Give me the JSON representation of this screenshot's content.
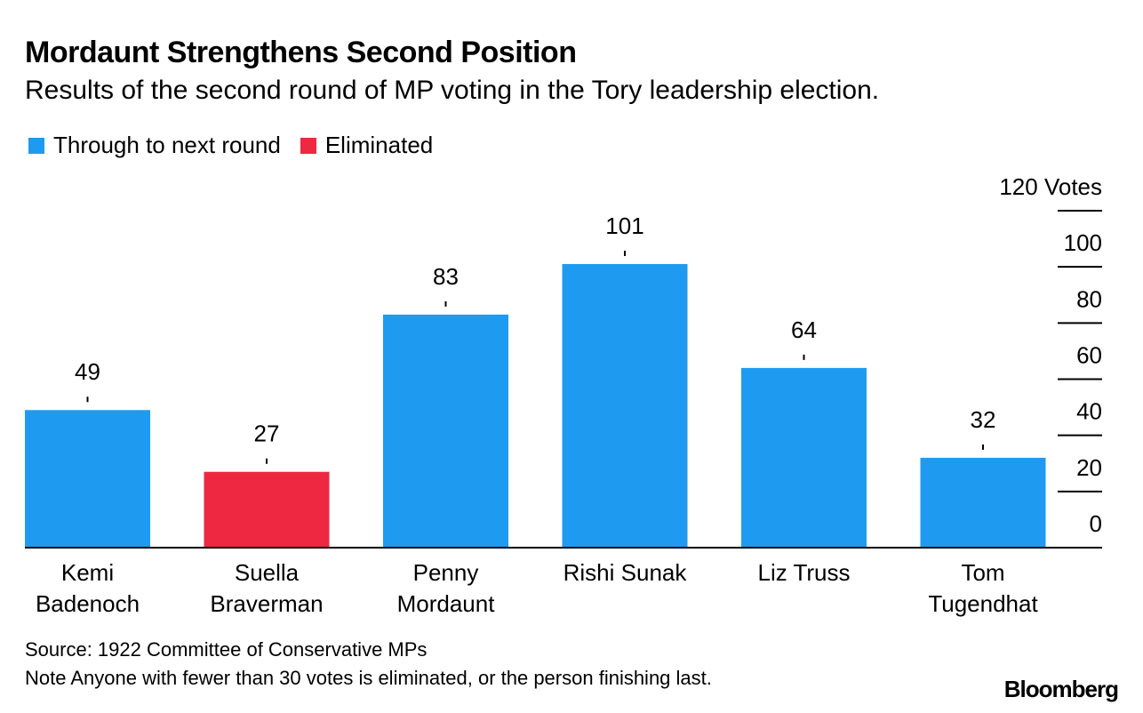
{
  "chart_data": {
    "type": "bar",
    "title": "Mordaunt Strengthens Second Position",
    "subtitle": "Results of the second round of MP voting in the Tory leadership election.",
    "categories": [
      [
        "Kemi",
        "Badenoch"
      ],
      [
        "Suella",
        "Braverman"
      ],
      [
        "Penny",
        "Mordaunt"
      ],
      [
        "Rishi Sunak"
      ],
      [
        "Liz Truss"
      ],
      [
        "Tom",
        "Tugendhat"
      ]
    ],
    "values": [
      49,
      27,
      83,
      101,
      64,
      32
    ],
    "status": [
      "through",
      "eliminated",
      "through",
      "through",
      "through",
      "through"
    ],
    "legend": [
      {
        "key": "through",
        "label": "Through to next round",
        "color": "#1e9bf0"
      },
      {
        "key": "eliminated",
        "label": "Eliminated",
        "color": "#ed2840"
      }
    ],
    "ylim": [
      0,
      120
    ],
    "yticks": [
      0,
      20,
      40,
      60,
      80,
      100,
      120
    ],
    "ytick_labels": [
      "0",
      "20",
      "40",
      "60",
      "80",
      "100",
      "120 Votes"
    ],
    "xlabel": "",
    "ylabel": "Votes"
  },
  "footer": {
    "source": "Source: 1922 Committee of Conservative MPs",
    "note": "Note Anyone with fewer than 30 votes is eliminated, or the person finishing last."
  },
  "branding": {
    "logo": "Bloomberg"
  }
}
